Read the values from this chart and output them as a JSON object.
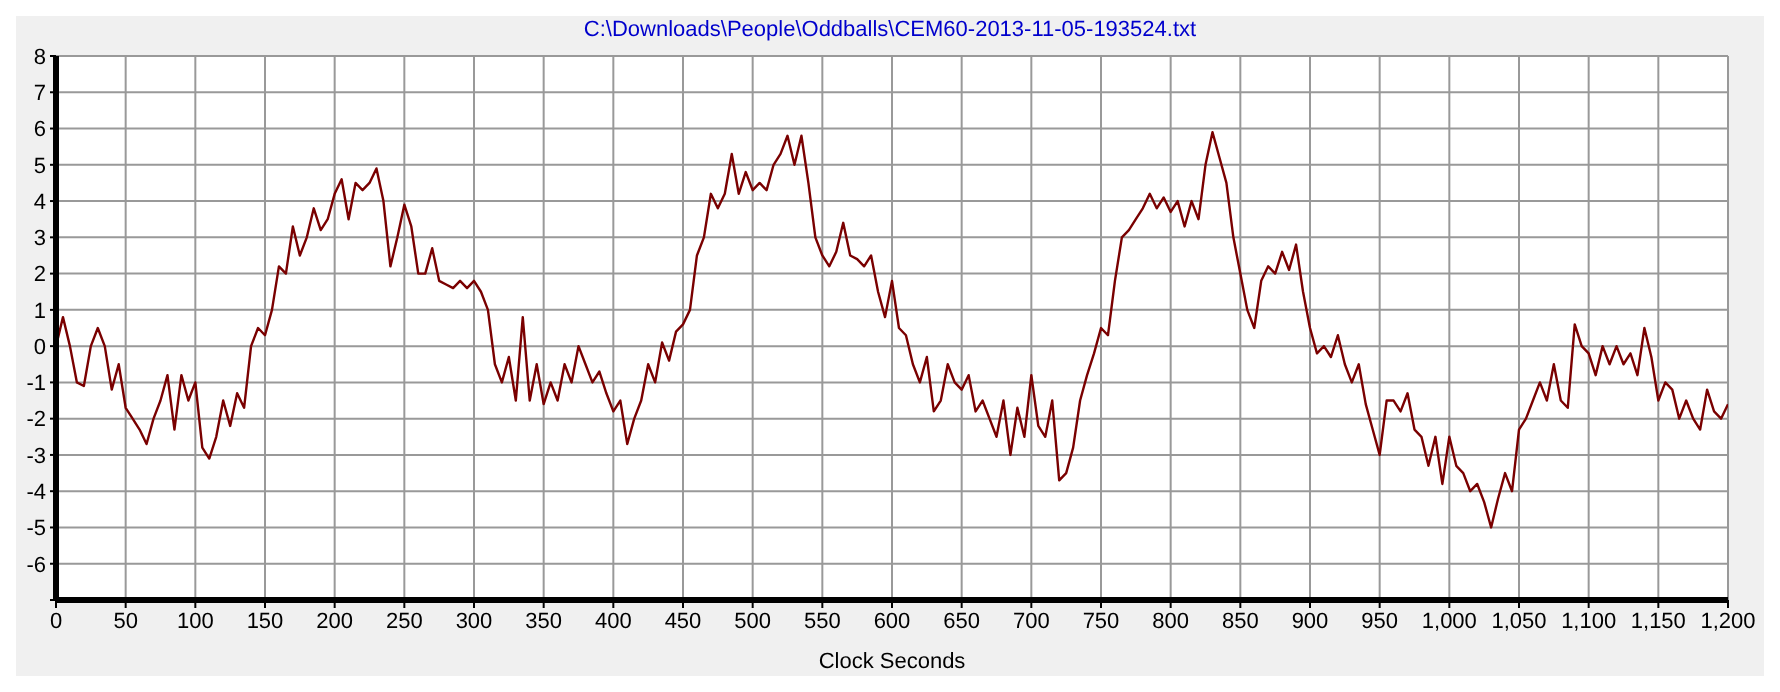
{
  "chart_data": {
    "type": "line",
    "title": "C:\\Downloads\\People\\Oddballs\\CEM60-2013-11-05-193524.txt",
    "xlabel": "Clock Seconds",
    "x": [
      0,
      5,
      10,
      15,
      20,
      25,
      30,
      35,
      40,
      45,
      50,
      55,
      60,
      65,
      70,
      75,
      80,
      85,
      90,
      95,
      100,
      105,
      110,
      115,
      120,
      125,
      130,
      135,
      140,
      145,
      150,
      155,
      160,
      165,
      170,
      175,
      180,
      185,
      190,
      195,
      200,
      205,
      210,
      215,
      220,
      225,
      230,
      235,
      240,
      245,
      250,
      255,
      260,
      265,
      270,
      275,
      280,
      285,
      290,
      295,
      300,
      305,
      310,
      315,
      320,
      325,
      330,
      335,
      340,
      345,
      350,
      355,
      360,
      365,
      370,
      375,
      380,
      385,
      390,
      395,
      400,
      405,
      410,
      415,
      420,
      425,
      430,
      435,
      440,
      445,
      450,
      455,
      460,
      465,
      470,
      475,
      480,
      485,
      490,
      495,
      500,
      505,
      510,
      515,
      520,
      525,
      530,
      535,
      540,
      545,
      550,
      555,
      560,
      565,
      570,
      575,
      580,
      585,
      590,
      595,
      600,
      605,
      610,
      615,
      620,
      625,
      630,
      635,
      640,
      645,
      650,
      655,
      660,
      665,
      670,
      675,
      680,
      685,
      690,
      695,
      700,
      705,
      710,
      715,
      720,
      725,
      730,
      735,
      740,
      745,
      750,
      755,
      760,
      765,
      770,
      775,
      780,
      785,
      790,
      795,
      800,
      805,
      810,
      815,
      820,
      825,
      830,
      835,
      840,
      845,
      850,
      855,
      860,
      865,
      870,
      875,
      880,
      885,
      890,
      895,
      900,
      905,
      910,
      915,
      920,
      925,
      930,
      935,
      940,
      945,
      950,
      955,
      960,
      965,
      970,
      975,
      980,
      985,
      990,
      995,
      1000,
      1005,
      1010,
      1015,
      1020,
      1025,
      1030,
      1035,
      1040,
      1045,
      1050,
      1055,
      1060,
      1065,
      1070,
      1075,
      1080,
      1085,
      1090,
      1095,
      1100,
      1105,
      1110,
      1115,
      1120,
      1125,
      1130,
      1135,
      1140,
      1145,
      1150,
      1155,
      1160,
      1165,
      1170,
      1175,
      1180,
      1185,
      1190,
      1195,
      1200
    ],
    "series": [
      {
        "color": "#7a0000",
        "values": [
          0,
          0.8,
          0,
          -1,
          -1.1,
          0,
          0.5,
          0,
          -1.2,
          -0.5,
          -1.7,
          -2,
          -2.3,
          -2.7,
          -2,
          -1.5,
          -0.8,
          -2.3,
          -0.8,
          -1.5,
          -1,
          -2.8,
          -3.1,
          -2.5,
          -1.5,
          -2.2,
          -1.3,
          -1.7,
          0,
          0.5,
          0.3,
          1,
          2.2,
          2,
          3.3,
          2.5,
          3,
          3.8,
          3.2,
          3.5,
          4.2,
          4.6,
          3.5,
          4.5,
          4.3,
          4.5,
          4.9,
          4,
          2.2,
          3,
          3.9,
          3.3,
          2,
          2,
          2.7,
          1.8,
          1.7,
          1.6,
          1.8,
          1.6,
          1.8,
          1.5,
          1,
          -0.5,
          -1,
          -0.3,
          -1.5,
          0.8,
          -1.5,
          -0.5,
          -1.6,
          -1,
          -1.5,
          -0.5,
          -1,
          0,
          -0.5,
          -1,
          -0.7,
          -1.3,
          -1.8,
          -1.5,
          -2.7,
          -2,
          -1.5,
          -0.5,
          -1,
          0.1,
          -0.4,
          0.4,
          0.6,
          1,
          2.5,
          3,
          4.2,
          3.8,
          4.2,
          5.3,
          4.2,
          4.8,
          4.3,
          4.5,
          4.3,
          5,
          5.3,
          5.8,
          5,
          5.8,
          4.5,
          3,
          2.5,
          2.2,
          2.6,
          3.4,
          2.5,
          2.4,
          2.2,
          2.5,
          1.5,
          0.8,
          1.8,
          0.5,
          0.3,
          -0.5,
          -1,
          -0.3,
          -1.8,
          -1.5,
          -0.5,
          -1,
          -1.2,
          -0.8,
          -1.8,
          -1.5,
          -2,
          -2.5,
          -1.5,
          -3,
          -1.7,
          -2.5,
          -0.8,
          -2.2,
          -2.5,
          -1.5,
          -3.7,
          -3.5,
          -2.8,
          -1.5,
          -0.8,
          -0.2,
          0.5,
          0.3,
          1.8,
          3,
          3.2,
          3.5,
          3.8,
          4.2,
          3.8,
          4.1,
          3.7,
          4,
          3.3,
          4,
          3.5,
          5,
          5.9,
          5.2,
          4.5,
          3,
          2,
          1,
          0.5,
          1.8,
          2.2,
          2,
          2.6,
          2.1,
          2.8,
          1.5,
          0.5,
          -0.2,
          0,
          -0.3,
          0.3,
          -0.5,
          -1,
          -0.5,
          -1.6,
          -2.3,
          -3,
          -1.5,
          -1.5,
          -1.8,
          -1.3,
          -2.3,
          -2.5,
          -3.3,
          -2.5,
          -3.8,
          -2.5,
          -3.3,
          -3.5,
          -4,
          -3.8,
          -4.3,
          -5,
          -4.2,
          -3.5,
          -4,
          -2.3,
          -2,
          -1.5,
          -1,
          -1.5,
          -0.5,
          -1.5,
          -1.7,
          0.6,
          0,
          -0.2,
          -0.8,
          0,
          -0.5,
          0,
          -0.5,
          -0.2,
          -0.8,
          0.5,
          -0.3,
          -1.5,
          -1,
          -1.2,
          -2,
          -1.5,
          -2,
          -2.3,
          -1.2,
          -1.8,
          -2,
          -1.6
        ]
      }
    ],
    "xlim": [
      0,
      1200
    ],
    "xticks": [
      0,
      50,
      100,
      150,
      200,
      250,
      300,
      350,
      400,
      450,
      500,
      550,
      600,
      650,
      700,
      750,
      800,
      850,
      900,
      950,
      {
        "value": 1000,
        "label": "1,000"
      },
      {
        "value": 1050,
        "label": "1,050"
      },
      {
        "value": 1100,
        "label": "1,100"
      },
      {
        "value": 1150,
        "label": "1,150"
      },
      {
        "value": 1200,
        "label": "1,200"
      }
    ],
    "ylim": [
      -7,
      8
    ],
    "yticks": [
      {
        "value": -7,
        "label": null
      },
      -6,
      -5,
      -4,
      -3,
      -2,
      -1,
      0,
      1,
      2,
      3,
      4,
      5,
      6,
      7,
      8
    ],
    "grid": true,
    "legend": false,
    "marker": "none",
    "line_style": "solid"
  }
}
